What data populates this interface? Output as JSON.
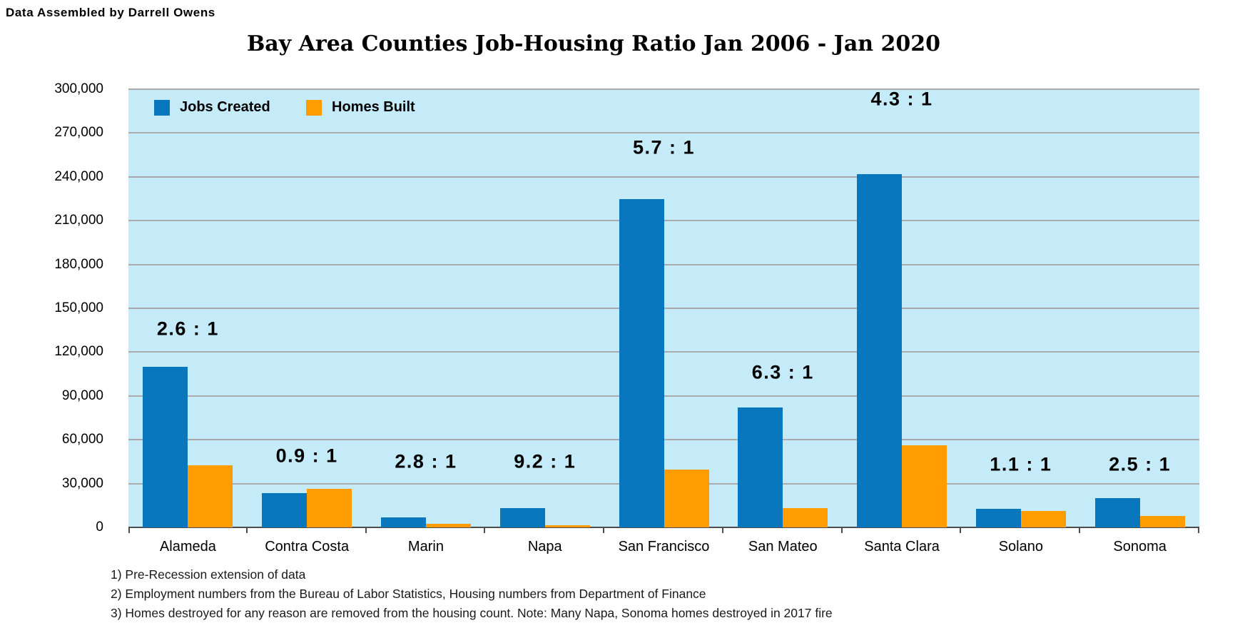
{
  "header": {
    "credit": "Data Assembled by Darrell Owens"
  },
  "chart_data": {
    "type": "bar",
    "title": "Bay Area Counties Job-Housing Ratio Jan 2006 - Jan 2020",
    "categories": [
      "Alameda",
      "Contra Costa",
      "Marin",
      "Napa",
      "San Francisco",
      "San Mateo",
      "Santa Clara",
      "Solano",
      "Sonoma"
    ],
    "series": [
      {
        "name": "Jobs Created",
        "color": "#0877BE",
        "values": [
          110000,
          23500,
          7000,
          13100,
          225000,
          82000,
          242000,
          12500,
          20000
        ]
      },
      {
        "name": "Homes Built",
        "color": "#FF9D00",
        "values": [
          42500,
          26500,
          2500,
          1425,
          39500,
          13000,
          56300,
          11400,
          8000
        ]
      }
    ],
    "annotations": [
      {
        "category": "Alameda",
        "text": "2.6 : 1",
        "y_value": 136000
      },
      {
        "category": "Contra Costa",
        "text": "0.9 : 1",
        "y_value": 48700
      },
      {
        "category": "Marin",
        "text": "2.8 : 1",
        "y_value": 44800
      },
      {
        "category": "Napa",
        "text": "9.2 : 1",
        "y_value": 44800
      },
      {
        "category": "San Francisco",
        "text": "5.7 : 1",
        "y_value": 260000
      },
      {
        "category": "San Mateo",
        "text": "6.3 : 1",
        "y_value": 106000
      },
      {
        "category": "Santa Clara",
        "text": "4.3 : 1",
        "y_value": 293000
      },
      {
        "category": "Solano",
        "text": "1.1 : 1",
        "y_value": 42800
      },
      {
        "category": "Sonoma",
        "text": "2.5 : 1",
        "y_value": 42800
      }
    ],
    "ylim": [
      0,
      300000
    ],
    "ytick_step": 30000,
    "ytick_labels": [
      "0",
      "30,000",
      "60,000",
      "90,000",
      "120,000",
      "150,000",
      "180,000",
      "210,000",
      "240,000",
      "270,000",
      "300,000"
    ],
    "grid": true,
    "plot_bg": "#C5EAF8",
    "gridline_color": "#ABABAB",
    "legend_position": "top-left"
  },
  "footnotes": [
    "1) Pre-Recession extension of data",
    "2) Employment numbers from the Bureau of Labor Statistics, Housing numbers from Department of Finance",
    "3) Homes destroyed for any reason are removed from the housing count. Note: Many Napa, Sonoma homes destroyed in 2017 fire"
  ]
}
